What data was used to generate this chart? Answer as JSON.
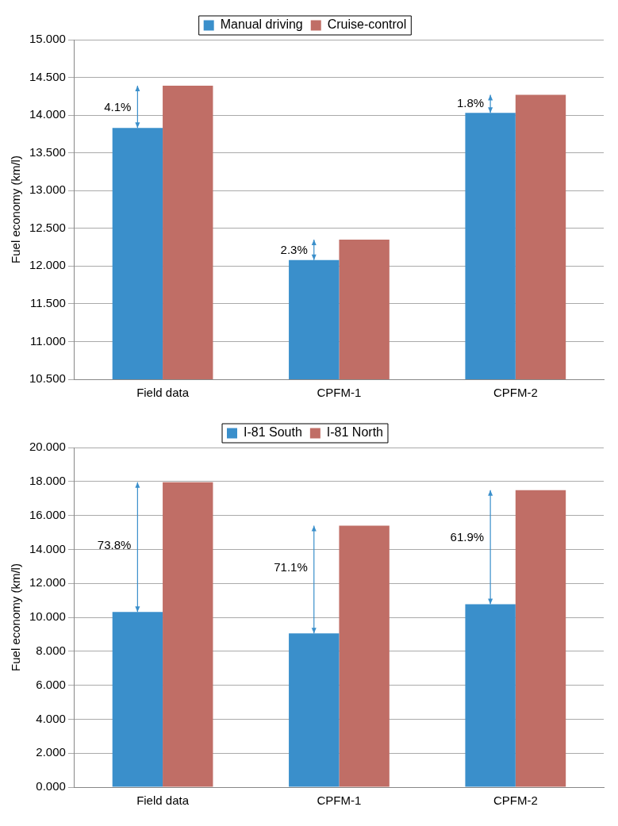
{
  "chart_data": [
    {
      "type": "bar",
      "ylabel": "Fuel economy (km/l)",
      "categories": [
        "Field data",
        "CPFM-1",
        "CPFM-2"
      ],
      "series": [
        {
          "name": "Manual driving",
          "color": "#3a8fcb",
          "values": [
            13.83,
            12.08,
            14.03
          ]
        },
        {
          "name": "Cruise-control",
          "color": "#c06e66",
          "values": [
            14.39,
            12.35,
            14.27
          ]
        }
      ],
      "ylim": [
        10.5,
        15
      ],
      "yticks": [
        {
          "value": 10.5,
          "label": "10.500"
        },
        {
          "value": 11,
          "label": "11.000"
        },
        {
          "value": 11.5,
          "label": "11.500"
        },
        {
          "value": 12,
          "label": "12.000"
        },
        {
          "value": 12.5,
          "label": "12.500"
        },
        {
          "value": 13,
          "label": "13.000"
        },
        {
          "value": 13.5,
          "label": "13.500"
        },
        {
          "value": 14,
          "label": "14.000"
        },
        {
          "value": 14.5,
          "label": "14.500"
        },
        {
          "value": 15,
          "label": "15.000"
        }
      ],
      "grid": "y",
      "legend": "top",
      "annotations": [
        {
          "text": "4.1%",
          "x": "Field data",
          "y": 14.1
        },
        {
          "text": "2.3%",
          "x": "CPFM-1",
          "y": 12.2
        },
        {
          "text": "1.8%",
          "x": "CPFM-2",
          "y": 14.15
        }
      ]
    },
    {
      "type": "bar",
      "ylabel": "Fuel economy (km/l)",
      "categories": [
        "Field data",
        "CPFM-1",
        "CPFM-2"
      ],
      "series": [
        {
          "name": "I-81 South",
          "color": "#3a8fcb",
          "values": [
            10.32,
            9.05,
            10.77
          ]
        },
        {
          "name": "I-81 North",
          "color": "#c06e66",
          "values": [
            17.95,
            15.4,
            17.49
          ]
        }
      ],
      "ylim": [
        0,
        20
      ],
      "yticks": [
        {
          "value": 0,
          "label": "0.000"
        },
        {
          "value": 2,
          "label": "2.000"
        },
        {
          "value": 4,
          "label": "4.000"
        },
        {
          "value": 6,
          "label": "6.000"
        },
        {
          "value": 8,
          "label": "8.000"
        },
        {
          "value": 10,
          "label": "10.000"
        },
        {
          "value": 12,
          "label": "12.000"
        },
        {
          "value": 14,
          "label": "14.000"
        },
        {
          "value": 16,
          "label": "16.000"
        },
        {
          "value": 18,
          "label": "18.000"
        },
        {
          "value": 20,
          "label": "20.000"
        }
      ],
      "grid": "y",
      "legend": "top",
      "annotations": [
        {
          "text": "73.8%",
          "x": "Field data",
          "y": 14.2
        },
        {
          "text": "71.1%",
          "x": "CPFM-1",
          "y": 12.9
        },
        {
          "text": "61.9%",
          "x": "CPFM-2",
          "y": 14.7
        }
      ]
    }
  ]
}
